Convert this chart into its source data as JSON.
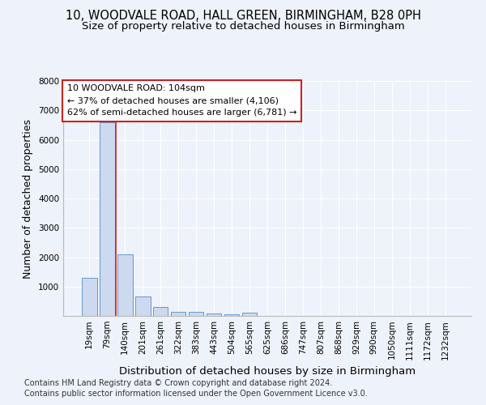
{
  "title1": "10, WOODVALE ROAD, HALL GREEN, BIRMINGHAM, B28 0PH",
  "title2": "Size of property relative to detached houses in Birmingham",
  "xlabel": "Distribution of detached houses by size in Birmingham",
  "ylabel": "Number of detached properties",
  "footnote1": "Contains HM Land Registry data © Crown copyright and database right 2024.",
  "footnote2": "Contains public sector information licensed under the Open Government Licence v3.0.",
  "categories": [
    "19sqm",
    "79sqm",
    "140sqm",
    "201sqm",
    "261sqm",
    "322sqm",
    "383sqm",
    "443sqm",
    "504sqm",
    "565sqm",
    "625sqm",
    "686sqm",
    "747sqm",
    "807sqm",
    "868sqm",
    "929sqm",
    "990sqm",
    "1050sqm",
    "1111sqm",
    "1172sqm",
    "1232sqm"
  ],
  "values": [
    1300,
    6600,
    2100,
    650,
    300,
    130,
    130,
    95,
    60,
    110,
    0,
    0,
    0,
    0,
    0,
    0,
    0,
    0,
    0,
    0,
    0
  ],
  "bar_color": "#cdd9ee",
  "bar_edge_color": "#6699cc",
  "vline_x": 1.5,
  "vline_color": "#cc2222",
  "annotation_line1": "10 WOODVALE ROAD: 104sqm",
  "annotation_line2": "← 37% of detached houses are smaller (4,106)",
  "annotation_line3": "62% of semi-detached houses are larger (6,781) →",
  "annotation_box_color": "#ffffff",
  "annotation_box_edge_color": "#cc2222",
  "ylim": [
    0,
    8000
  ],
  "yticks": [
    0,
    1000,
    2000,
    3000,
    4000,
    5000,
    6000,
    7000,
    8000
  ],
  "background_color": "#eef2fa",
  "grid_color": "#ffffff",
  "title_fontsize": 10.5,
  "subtitle_fontsize": 9.5,
  "ylabel_fontsize": 9,
  "xlabel_fontsize": 9.5,
  "tick_fontsize": 7.5,
  "annotation_fontsize": 8,
  "footnote_fontsize": 7
}
